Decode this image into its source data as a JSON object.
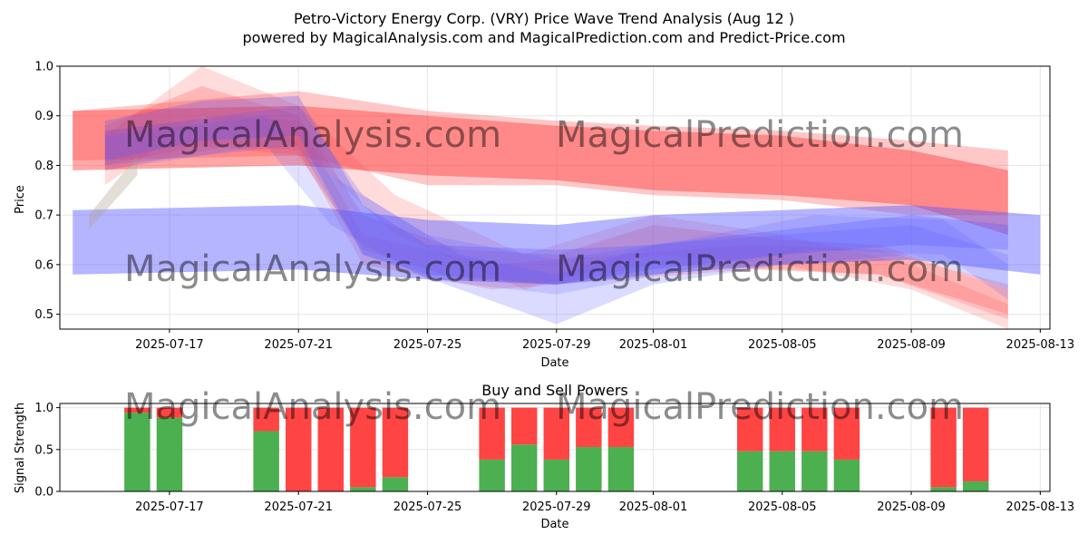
{
  "title_line1": "Petro-Victory Energy Corp. (VRY) Price Wave Trend Analysis (Aug 12 )",
  "title_line2": "powered by MagicalAnalysis.com and MagicalPrediction.com and Predict-Price.com",
  "watermarks": [
    "MagicalAnalysis.com",
    "MagicalPrediction.com"
  ],
  "colors": {
    "red": "#ff3b3b",
    "blue": "#5a5aff",
    "buy": "#4caf50",
    "sell": "#ff4444",
    "grid": "#e6e6e6"
  },
  "chart_data": [
    {
      "type": "area",
      "name": "price-wave-chart",
      "title": "",
      "xlabel": "Date",
      "ylabel": "Price",
      "ylim": [
        0.47,
        1.0
      ],
      "xlim": [
        "2025-07-13.6",
        "2025-08-13.3"
      ],
      "xticks": [
        "2025-07-17",
        "2025-07-21",
        "2025-07-25",
        "2025-07-29",
        "2025-08-01",
        "2025-08-05",
        "2025-08-09",
        "2025-08-13"
      ],
      "yticks": [
        0.5,
        0.6,
        0.7,
        0.8,
        0.9,
        1.0
      ],
      "grid": true,
      "series": [
        {
          "name": "red-band-main",
          "color": "red",
          "opacity": 0.45,
          "points": [
            [
              "2025-07-14",
              0.91,
              0.79
            ],
            [
              "2025-07-21",
              0.92,
              0.8
            ],
            [
              "2025-07-25",
              0.9,
              0.78
            ],
            [
              "2025-07-29",
              0.88,
              0.77
            ],
            [
              "2025-08-01",
              0.87,
              0.75
            ],
            [
              "2025-08-05",
              0.86,
              0.74
            ],
            [
              "2025-08-09",
              0.83,
              0.72
            ],
            [
              "2025-08-12",
              0.79,
              0.66
            ]
          ]
        },
        {
          "name": "red-band-outer",
          "color": "red",
          "opacity": 0.28,
          "points": [
            [
              "2025-07-14",
              0.91,
              0.81
            ],
            [
              "2025-07-21",
              0.95,
              0.82
            ],
            [
              "2025-07-25",
              0.91,
              0.76
            ],
            [
              "2025-07-29",
              0.89,
              0.76
            ],
            [
              "2025-08-01",
              0.88,
              0.74
            ],
            [
              "2025-08-05",
              0.87,
              0.73
            ],
            [
              "2025-08-09",
              0.85,
              0.7
            ],
            [
              "2025-08-12",
              0.83,
              0.7
            ]
          ]
        },
        {
          "name": "red-wave-1",
          "color": "red",
          "opacity": 0.22,
          "points": [
            [
              "2025-07-15",
              0.88,
              0.8
            ],
            [
              "2025-07-18",
              0.96,
              0.84
            ],
            [
              "2025-07-21",
              0.9,
              0.82
            ],
            [
              "2025-07-23",
              0.7,
              0.63
            ],
            [
              "2025-07-26",
              0.63,
              0.57
            ],
            [
              "2025-07-29",
              0.62,
              0.56
            ],
            [
              "2025-08-01",
              0.68,
              0.6
            ],
            [
              "2025-08-05",
              0.65,
              0.59
            ],
            [
              "2025-08-08",
              0.64,
              0.58
            ],
            [
              "2025-08-12",
              0.55,
              0.5
            ]
          ]
        },
        {
          "name": "red-wave-2",
          "color": "red",
          "opacity": 0.18,
          "points": [
            [
              "2025-07-15",
              0.86,
              0.76
            ],
            [
              "2025-07-18",
              1.0,
              0.9
            ],
            [
              "2025-07-21",
              0.92,
              0.84
            ],
            [
              "2025-07-24",
              0.74,
              0.66
            ],
            [
              "2025-07-28",
              0.62,
              0.55
            ],
            [
              "2025-08-01",
              0.7,
              0.62
            ],
            [
              "2025-08-05",
              0.66,
              0.6
            ],
            [
              "2025-08-09",
              0.6,
              0.55
            ],
            [
              "2025-08-12",
              0.52,
              0.47
            ]
          ]
        },
        {
          "name": "red-wave-3",
          "color": "red",
          "opacity": 0.2,
          "points": [
            [
              "2025-07-15",
              0.87,
              0.79
            ],
            [
              "2025-07-19",
              0.9,
              0.84
            ],
            [
              "2025-07-21",
              0.89,
              0.83
            ],
            [
              "2025-07-23",
              0.66,
              0.6
            ],
            [
              "2025-07-27",
              0.6,
              0.55
            ],
            [
              "2025-07-31",
              0.62,
              0.57
            ],
            [
              "2025-08-04",
              0.64,
              0.59
            ],
            [
              "2025-08-08",
              0.63,
              0.58
            ],
            [
              "2025-08-12",
              0.56,
              0.49
            ]
          ]
        },
        {
          "name": "blue-band-main",
          "color": "blue",
          "opacity": 0.45,
          "points": [
            [
              "2025-07-14",
              0.71,
              0.58
            ],
            [
              "2025-07-21",
              0.72,
              0.59
            ],
            [
              "2025-07-25",
              0.69,
              0.57
            ],
            [
              "2025-07-29",
              0.68,
              0.56
            ],
            [
              "2025-08-01",
              0.7,
              0.58
            ],
            [
              "2025-08-05",
              0.71,
              0.6
            ],
            [
              "2025-08-09",
              0.72,
              0.61
            ],
            [
              "2025-08-13",
              0.7,
              0.58
            ]
          ]
        },
        {
          "name": "blue-wave-1",
          "color": "blue",
          "opacity": 0.3,
          "points": [
            [
              "2025-07-15",
              0.89,
              0.81
            ],
            [
              "2025-07-18",
              0.93,
              0.85
            ],
            [
              "2025-07-21",
              0.94,
              0.86
            ],
            [
              "2025-07-23",
              0.72,
              0.62
            ],
            [
              "2025-07-25",
              0.64,
              0.58
            ],
            [
              "2025-07-29",
              0.63,
              0.56
            ],
            [
              "2025-08-01",
              0.64,
              0.59
            ],
            [
              "2025-08-05",
              0.67,
              0.62
            ],
            [
              "2025-08-09",
              0.7,
              0.64
            ],
            [
              "2025-08-12",
              0.68,
              0.63
            ]
          ]
        },
        {
          "name": "blue-wave-2",
          "color": "blue",
          "opacity": 0.22,
          "points": [
            [
              "2025-07-15",
              0.87,
              0.8
            ],
            [
              "2025-07-21",
              0.92,
              0.84
            ],
            [
              "2025-07-23",
              0.74,
              0.62
            ],
            [
              "2025-07-26",
              0.62,
              0.55
            ],
            [
              "2025-07-29",
              0.58,
              0.48
            ],
            [
              "2025-08-01",
              0.64,
              0.56
            ],
            [
              "2025-08-05",
              0.66,
              0.6
            ],
            [
              "2025-08-09",
              0.68,
              0.62
            ],
            [
              "2025-08-12",
              0.62,
              0.55
            ]
          ]
        },
        {
          "name": "blue-wave-3",
          "color": "blue",
          "opacity": 0.18,
          "points": [
            [
              "2025-07-15",
              0.86,
              0.79
            ],
            [
              "2025-07-20",
              0.9,
              0.84
            ],
            [
              "2025-07-22",
              0.78,
              0.68
            ],
            [
              "2025-07-25",
              0.66,
              0.57
            ],
            [
              "2025-07-29",
              0.61,
              0.54
            ],
            [
              "2025-08-02",
              0.65,
              0.59
            ],
            [
              "2025-08-06",
              0.7,
              0.63
            ],
            [
              "2025-08-10",
              0.69,
              0.62
            ],
            [
              "2025-08-12",
              0.6,
              0.53
            ]
          ]
        },
        {
          "name": "gray-wave",
          "color": "#b0a090",
          "opacity": 0.35,
          "points": [
            [
              "2025-07-14.5",
              0.7,
              0.67
            ],
            [
              "2025-07-16",
              0.82,
              0.78
            ]
          ]
        }
      ]
    },
    {
      "type": "bar",
      "name": "buy-sell-powers",
      "title": "Buy and Sell Powers",
      "xlabel": "Date",
      "ylabel": "Signal Strength",
      "ylim": [
        0,
        1.05
      ],
      "xlim": [
        "2025-07-13.6",
        "2025-08-13.3"
      ],
      "xticks": [
        "2025-07-17",
        "2025-07-21",
        "2025-07-25",
        "2025-07-29",
        "2025-08-01",
        "2025-08-05",
        "2025-08-09",
        "2025-08-13"
      ],
      "yticks": [
        0.0,
        0.5,
        1.0
      ],
      "grid": true,
      "categories": [
        "2025-07-16",
        "2025-07-17",
        "2025-07-20",
        "2025-07-21",
        "2025-07-22",
        "2025-07-23",
        "2025-07-24",
        "2025-07-27",
        "2025-07-28",
        "2025-07-29",
        "2025-07-30",
        "2025-07-31",
        "2025-08-04",
        "2025-08-05",
        "2025-08-06",
        "2025-08-07",
        "2025-08-10",
        "2025-08-11"
      ],
      "series": [
        {
          "name": "Buy",
          "color": "buy",
          "values": [
            0.94,
            0.88,
            0.72,
            0.0,
            0.0,
            0.05,
            0.17,
            0.38,
            0.56,
            0.38,
            0.53,
            0.53,
            0.48,
            0.48,
            0.48,
            0.38,
            0.05,
            0.12
          ]
        },
        {
          "name": "Sell",
          "color": "sell",
          "values": [
            0.06,
            0.12,
            0.28,
            1.0,
            1.0,
            0.95,
            0.83,
            0.62,
            0.44,
            0.62,
            0.47,
            0.47,
            0.52,
            0.52,
            0.52,
            0.62,
            0.95,
            0.88
          ]
        }
      ]
    }
  ]
}
